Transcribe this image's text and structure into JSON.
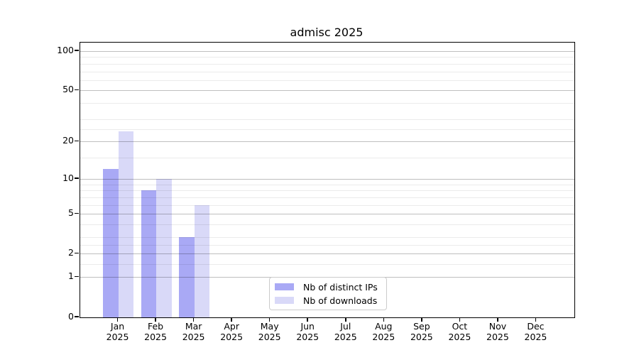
{
  "chart_data": {
    "type": "bar",
    "title": "admisc 2025",
    "categories": [
      {
        "month": "Jan",
        "year": "2025"
      },
      {
        "month": "Feb",
        "year": "2025"
      },
      {
        "month": "Mar",
        "year": "2025"
      },
      {
        "month": "Apr",
        "year": "2025"
      },
      {
        "month": "May",
        "year": "2025"
      },
      {
        "month": "Jun",
        "year": "2025"
      },
      {
        "month": "Jul",
        "year": "2025"
      },
      {
        "month": "Aug",
        "year": "2025"
      },
      {
        "month": "Sep",
        "year": "2025"
      },
      {
        "month": "Oct",
        "year": "2025"
      },
      {
        "month": "Nov",
        "year": "2025"
      },
      {
        "month": "Dec",
        "year": "2025"
      }
    ],
    "series": [
      {
        "name": "Nb of distinct IPs",
        "color": "#a9a9f5",
        "values": [
          12,
          8,
          3,
          0,
          0,
          0,
          0,
          0,
          0,
          0,
          0,
          0
        ]
      },
      {
        "name": "Nb of downloads",
        "color": "#d9d9f8",
        "values": [
          24,
          10,
          6,
          0,
          0,
          0,
          0,
          0,
          0,
          0,
          0,
          0
        ]
      }
    ],
    "y_axis": {
      "scale": "log1p",
      "tick_labels": [
        "100",
        "50",
        "20",
        "10",
        "5",
        "2",
        "1",
        "0"
      ],
      "tick_values": [
        100,
        50,
        20,
        10,
        5,
        2,
        1,
        0
      ],
      "major_gridlines": [
        1,
        2,
        5,
        10,
        20,
        50,
        100
      ],
      "minor_gridlines": [
        1.5,
        2.5,
        3,
        4,
        6,
        7,
        8,
        9,
        15,
        25,
        30,
        40,
        60,
        70,
        80,
        90
      ],
      "ylim": [
        0,
        115
      ]
    },
    "legend": {
      "position": "lower center"
    },
    "style": {
      "major_grid_color": "rgba(0,0,0,0.25)",
      "minor_grid_color": "rgba(0,0,0,0.08)",
      "spine_color": "#000000",
      "grid_over_bars": true
    }
  }
}
